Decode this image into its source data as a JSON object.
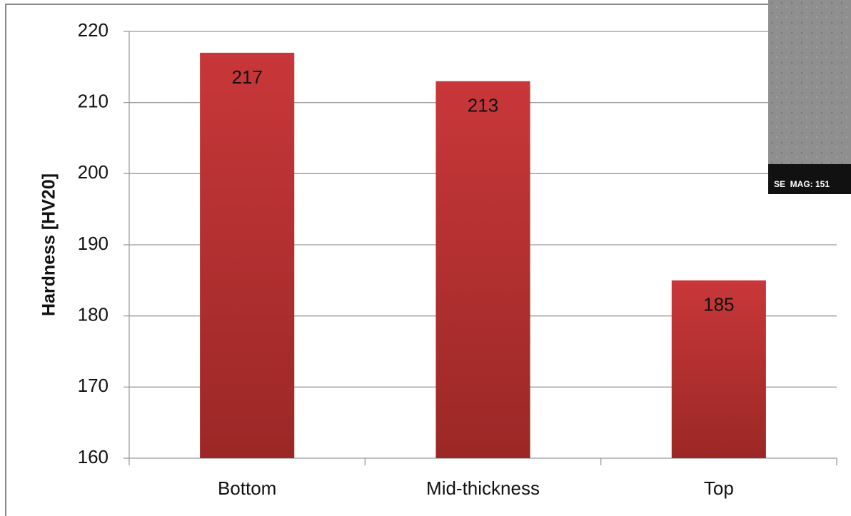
{
  "chart_data": {
    "type": "bar",
    "y_label": "Hardness [HV20]",
    "categories": [
      "Bottom",
      "Mid-thickness",
      "Top"
    ],
    "values": [
      217,
      213,
      185
    ],
    "color": "#c8373a",
    "ylim": [
      160,
      220
    ],
    "yticks": [
      160,
      170,
      180,
      190,
      200,
      210,
      220
    ],
    "grid": true,
    "inset_label": "SE  MAG: 151"
  }
}
